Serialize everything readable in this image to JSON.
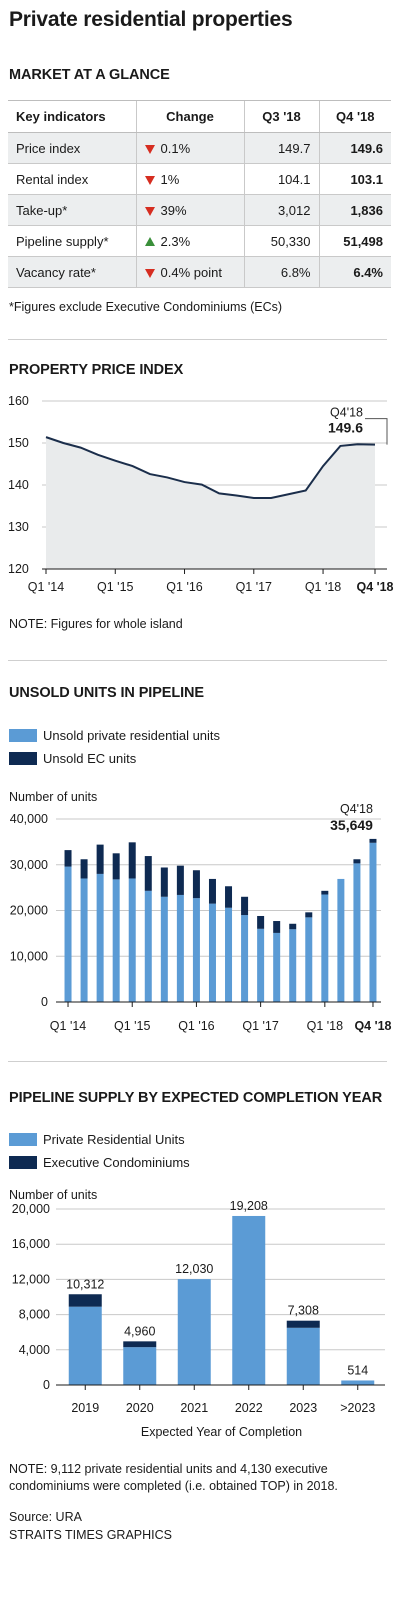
{
  "title": "Private residential properties",
  "market": {
    "section_title": "MARKET AT A GLANCE",
    "headers": [
      "Key indicators",
      "Change",
      "Q3 '18",
      "Q4 '18"
    ],
    "rows": [
      {
        "indicator": "Price index",
        "dir": "down",
        "change": "0.1%",
        "q3": "149.7",
        "q4": "149.6"
      },
      {
        "indicator": "Rental index",
        "dir": "down",
        "change": "1%",
        "q3": "104.1",
        "q4": "103.1"
      },
      {
        "indicator": "Take-up*",
        "dir": "down",
        "change": "39%",
        "q3": "3,012",
        "q4": "1,836"
      },
      {
        "indicator": "Pipeline supply*",
        "dir": "up",
        "change": "2.3%",
        "q3": "50,330",
        "q4": "51,498"
      },
      {
        "indicator": "Vacancy rate*",
        "dir": "down",
        "change": "0.4% point",
        "q3": "6.8%",
        "q4": "6.4%"
      }
    ],
    "footnote": "*Figures exclude Executive Condominiums (ECs)"
  },
  "notes": {
    "price_note": "NOTE: Figures for whole island",
    "pipeline_note_line1": "NOTE: 9,112 private residential units and 4,130 executive",
    "pipeline_note_line2": "condominiums were completed (i.e. obtained TOP) in 2018.",
    "source": "Source: URA",
    "credit": "STRAITS TIMES GRAPHICS"
  },
  "colors": {
    "primary": "#5b9bd5",
    "secondary": "#0e2a52",
    "line": "#1b2e4b",
    "area": "#e9ebec",
    "down": "#d62d20",
    "up": "#3a8f3a"
  },
  "chart_data": [
    {
      "type": "area",
      "title": "PROPERTY PRICE INDEX",
      "x": [
        "Q1 '14",
        "Q2 '14",
        "Q3 '14",
        "Q4 '14",
        "Q1 '15",
        "Q2 '15",
        "Q3 '15",
        "Q4 '15",
        "Q1 '16",
        "Q2 '16",
        "Q3 '16",
        "Q4 '16",
        "Q1 '17",
        "Q2 '17",
        "Q3 '17",
        "Q4 '17",
        "Q1 '18",
        "Q2 '18",
        "Q3 '18",
        "Q4 '18"
      ],
      "y": [
        151.4,
        150.0,
        148.9,
        147.2,
        145.8,
        144.5,
        142.6,
        141.8,
        140.7,
        140.1,
        138.0,
        137.5,
        136.9,
        136.9,
        137.8,
        138.7,
        144.5,
        149.3,
        149.7,
        149.6
      ],
      "xticks": [
        "Q1 '14",
        "Q1 '15",
        "Q1 '16",
        "Q1 '17",
        "Q1 '18",
        "Q4 '18"
      ],
      "yticks": [
        120,
        130,
        140,
        150,
        160
      ],
      "ylim": [
        120,
        160
      ],
      "annotation": {
        "label": "Q4'18",
        "value": "149.6"
      }
    },
    {
      "type": "bar",
      "title": "UNSOLD UNITS IN PIPELINE",
      "ylabel": "Number of units",
      "x": [
        "Q1 '14",
        "Q2 '14",
        "Q3 '14",
        "Q4 '14",
        "Q1 '15",
        "Q2 '15",
        "Q3 '15",
        "Q4 '15",
        "Q1 '16",
        "Q2 '16",
        "Q3 '16",
        "Q4 '16",
        "Q1 '17",
        "Q2 '17",
        "Q3 '17",
        "Q4 '17",
        "Q1 '18",
        "Q2 '18",
        "Q3 '18",
        "Q4 '18"
      ],
      "series": [
        {
          "name": "Unsold private residential units",
          "values": [
            29600,
            27000,
            28000,
            26800,
            27000,
            24300,
            23000,
            23400,
            22700,
            21500,
            20600,
            19000,
            16000,
            15100,
            15900,
            18500,
            23500,
            26900,
            30300,
            34800
          ]
        },
        {
          "name": "Unsold EC units",
          "values": [
            3600,
            4200,
            6400,
            5700,
            7900,
            7600,
            6400,
            6400,
            6100,
            5400,
            4700,
            4000,
            2800,
            2600,
            1200,
            1100,
            800,
            0,
            900,
            849
          ]
        }
      ],
      "xticks": [
        "Q1 '14",
        "Q1 '15",
        "Q1 '16",
        "Q1 '17",
        "Q1 '18",
        "Q4 '18"
      ],
      "yticks": [
        0,
        10000,
        20000,
        30000,
        40000
      ],
      "ytick_labels": [
        "0",
        "10,000",
        "20,000",
        "30,000",
        "40,000"
      ],
      "ylim": [
        0,
        40000
      ],
      "annotation": {
        "label": "Q4'18",
        "value": "35,649"
      }
    },
    {
      "type": "bar",
      "title": "PIPELINE SUPPLY BY EXPECTED COMPLETION YEAR",
      "ylabel": "Number of units",
      "xlabel": "Expected Year of Completion",
      "categories": [
        "2019",
        "2020",
        "2021",
        "2022",
        "2023",
        ">2023"
      ],
      "series": [
        {
          "name": "Private Residential Units",
          "values": [
            8900,
            4300,
            12030,
            19208,
            6500,
            514
          ]
        },
        {
          "name": "Executive Condominiums",
          "values": [
            1412,
            660,
            0,
            0,
            808,
            0
          ]
        }
      ],
      "totals": [
        "10,312",
        "4,960",
        "12,030",
        "19,208",
        "7,308",
        "514"
      ],
      "yticks": [
        0,
        4000,
        8000,
        12000,
        16000,
        20000
      ],
      "ytick_labels": [
        "0",
        "4,000",
        "8,000",
        "12,000",
        "16,000",
        "20,000"
      ],
      "ylim": [
        0,
        20000
      ]
    }
  ]
}
